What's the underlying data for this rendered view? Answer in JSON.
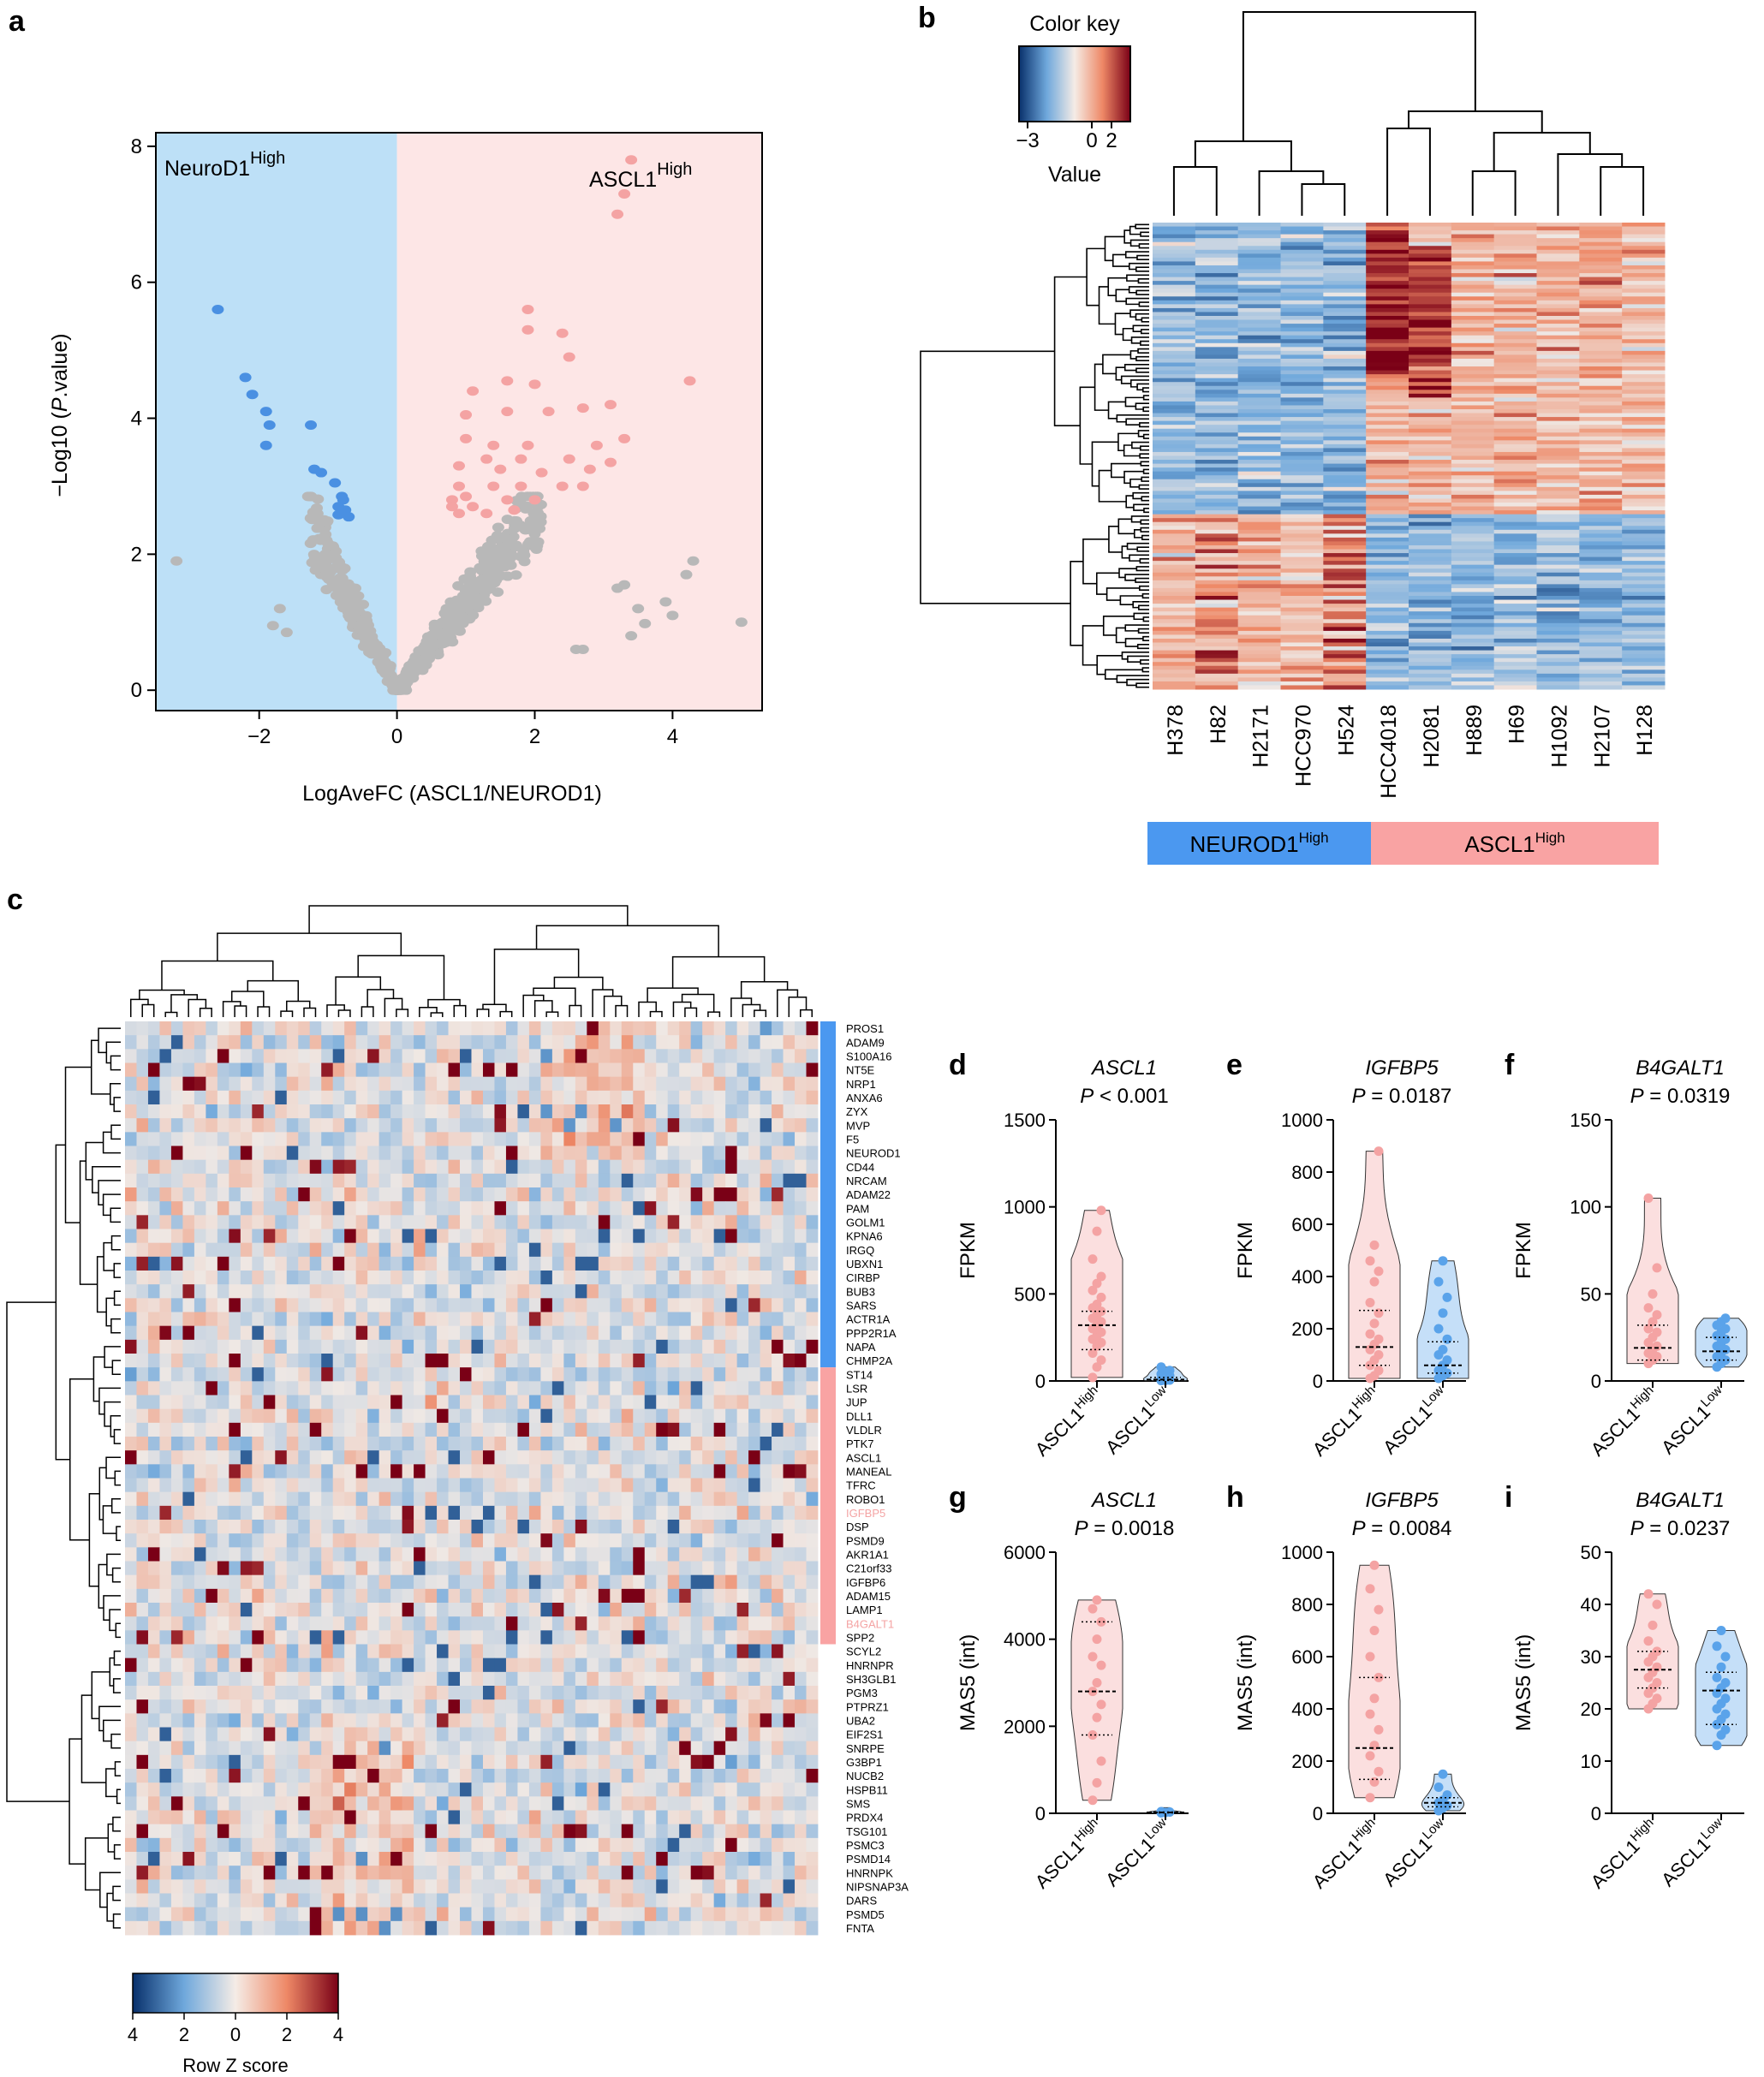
{
  "panels": {
    "a": {
      "letter": "a",
      "chart_data": {
        "type": "scatter",
        "title": "",
        "xlabel": "LogAveFC (ASCL1/NEUROD1)",
        "ylabel_prefix": "−Log10 (",
        "ylabel_italic": "P",
        "ylabel_suffix": ".value)",
        "xlim": [
          -3.5,
          5.3
        ],
        "ylim": [
          -0.3,
          8.2
        ],
        "xticks": [
          -2,
          0,
          2,
          4
        ],
        "xtick_labels": [
          "−2",
          "0",
          "2",
          "4"
        ],
        "yticks": [
          0,
          2,
          4,
          6,
          8
        ],
        "left_region_label": "NeuroD1",
        "left_region_sup": "High",
        "right_region_label": "ASCL1",
        "right_region_sup": "High",
        "region_colors": {
          "left": "#bde0f7",
          "right": "#fde6e6"
        },
        "point_colors": {
          "neurod1_sig": "#4a90e2",
          "ascl1_sig": "#f4a3a3",
          "ns": "#b8b8b8"
        },
        "series": [
          {
            "name": "NeuroD1-high significant",
            "points": [
              [
                -2.6,
                5.6
              ],
              [
                -2.2,
                4.6
              ],
              [
                -2.1,
                4.35
              ],
              [
                -1.9,
                4.1
              ],
              [
                -1.85,
                3.9
              ],
              [
                -1.25,
                3.9
              ],
              [
                -1.9,
                3.6
              ],
              [
                -1.2,
                3.25
              ],
              [
                -1.1,
                3.2
              ],
              [
                -0.9,
                3.05
              ],
              [
                -0.8,
                2.85
              ],
              [
                -0.85,
                2.7
              ],
              [
                -0.75,
                2.65
              ],
              [
                -0.8,
                2.6
              ],
              [
                -0.7,
                2.55
              ],
              [
                -0.85,
                2.58
              ],
              [
                -0.78,
                2.8
              ]
            ]
          },
          {
            "name": "ASCL1-high significant",
            "points": [
              [
                3.4,
                7.8
              ],
              [
                3.3,
                7.3
              ],
              [
                3.2,
                7.0
              ],
              [
                1.9,
                5.6
              ],
              [
                1.9,
                5.3
              ],
              [
                2.4,
                5.25
              ],
              [
                2.5,
                4.9
              ],
              [
                4.25,
                4.55
              ],
              [
                2.0,
                4.5
              ],
              [
                1.6,
                4.55
              ],
              [
                1.1,
                4.4
              ],
              [
                3.1,
                4.2
              ],
              [
                2.7,
                4.15
              ],
              [
                2.2,
                4.1
              ],
              [
                1.6,
                4.1
              ],
              [
                1.0,
                4.05
              ],
              [
                3.3,
                3.7
              ],
              [
                2.9,
                3.6
              ],
              [
                3.1,
                3.35
              ],
              [
                1.0,
                3.7
              ],
              [
                1.4,
                3.6
              ],
              [
                1.9,
                3.6
              ],
              [
                1.3,
                3.4
              ],
              [
                1.8,
                3.4
              ],
              [
                2.5,
                3.4
              ],
              [
                0.9,
                3.3
              ],
              [
                1.5,
                3.25
              ],
              [
                2.1,
                3.2
              ],
              [
                2.8,
                3.25
              ],
              [
                0.9,
                3.0
              ],
              [
                1.4,
                3.0
              ],
              [
                1.8,
                3.0
              ],
              [
                2.4,
                3.0
              ],
              [
                2.7,
                3.0
              ],
              [
                0.8,
                2.8
              ],
              [
                1.1,
                2.7
              ],
              [
                1.6,
                2.8
              ],
              [
                2.0,
                2.8
              ],
              [
                0.9,
                2.6
              ],
              [
                1.3,
                2.6
              ],
              [
                0.8,
                2.7
              ],
              [
                1.0,
                2.85
              ],
              [
                1.7,
                2.65
              ]
            ]
          },
          {
            "name": "Not significant",
            "points": [
              [
                -3.2,
                1.9
              ],
              [
                4.3,
                1.9
              ],
              [
                4.2,
                1.7
              ],
              [
                3.3,
                1.55
              ],
              [
                3.2,
                1.5
              ],
              [
                3.5,
                1.2
              ],
              [
                3.9,
                1.3
              ],
              [
                4.0,
                1.1
              ],
              [
                5.0,
                1.0
              ],
              [
                3.6,
                0.98
              ],
              [
                3.4,
                0.8
              ],
              [
                2.6,
                0.6
              ],
              [
                2.7,
                0.6
              ],
              [
                -1.6,
                0.85
              ],
              [
                -1.7,
                1.2
              ],
              [
                -1.8,
                0.95
              ]
            ]
          }
        ]
      }
    },
    "b": {
      "letter": "b",
      "color_key_title": "Color key",
      "color_key_label": "Value",
      "color_key_ticks": [
        "−3",
        "0",
        "2"
      ],
      "chart_data": {
        "type": "heatmap",
        "samples": [
          "H378",
          "H82",
          "H2171",
          "HCC970",
          "H524",
          "HCC4018",
          "H2081",
          "H889",
          "H69",
          "H1092",
          "H2107",
          "H128"
        ],
        "groups": [
          {
            "label": "NEUROD1",
            "sup": "High",
            "color": "#4b98f0"
          },
          {
            "label": "ASCL1",
            "sup": "High",
            "color": "#f9a3a3"
          }
        ],
        "value_range": [
          -3,
          3
        ],
        "rows": 120,
        "row_split": 75
      }
    },
    "c": {
      "letter": "c",
      "colorbar_title": "Row Z score",
      "colorbar_ticks": [
        "4",
        "2",
        "0",
        "2",
        "4"
      ],
      "chart_data": {
        "type": "heatmap",
        "genes": [
          "PROS1",
          "ADAM9",
          "S100A16",
          "NT5E",
          "NRP1",
          "ANXA6",
          "ZYX",
          "MVP",
          "F5",
          "NEUROD1",
          "CD44",
          "NRCAM",
          "ADAM22",
          "PAM",
          "GOLM1",
          "KPNA6",
          "IRGQ",
          "UBXN1",
          "CIRBP",
          "BUB3",
          "SARS",
          "ACTR1A",
          "PPP2R1A",
          "NAPA",
          "CHMP2A",
          "ST14",
          "LSR",
          "JUP",
          "DLL1",
          "VLDLR",
          "PTK7",
          "ASCL1",
          "MANEAL",
          "TFRC",
          "ROBO1",
          "IGFBP5",
          "DSP",
          "PSMD9",
          "AKR1A1",
          "C21orf33",
          "IGFBP6",
          "ADAM15",
          "LAMP1",
          "B4GALT1",
          "SPP2",
          "SCYL2",
          "HNRNPR",
          "SH3GLB1",
          "PGM3",
          "PTPRZ1",
          "UBA2",
          "EIF2S1",
          "SNRPE",
          "G3BP1",
          "NUCB2",
          "HSPB11",
          "SMS",
          "PRDX4",
          "TSG101",
          "PSMC3",
          "PSMD14",
          "HNRNPK",
          "NIPSNAP3A",
          "DARS",
          "PSMD5",
          "FNTA"
        ],
        "highlight_genes": [
          "IGFBP5",
          "B4GALT1"
        ],
        "group_bar": [
          {
            "from": 0,
            "to": 25,
            "color": "#4b98f0"
          },
          {
            "from": 25,
            "to": 45,
            "color": "#f9a3a3"
          }
        ],
        "columns": 60,
        "value_range": [
          -4,
          4
        ]
      }
    },
    "violins": [
      {
        "letter": "d",
        "gene": "ASCL1",
        "p_prefix": "P",
        "p_text": " < 0.001",
        "ylabel": "FPKM",
        "chart_data": {
          "type": "violin",
          "yticks": [
            0,
            500,
            1000,
            1500
          ],
          "ylim": [
            0,
            1500
          ],
          "groups": [
            {
              "label": "ASCL1",
              "sup": "High",
              "color": "#f4a3a3",
              "points": [
                980,
                860,
                700,
                600,
                560,
                520,
                480,
                440,
                420,
                400,
                380,
                360,
                340,
                320,
                300,
                280,
                260,
                240,
                220,
                200,
                160,
                120,
                80,
                20
              ],
              "median": 320,
              "q1": 180,
              "q3": 400
            },
            {
              "label": "ASCL1",
              "sup": "Low",
              "color": "#5aa3ea",
              "points": [
                80,
                60,
                50,
                40,
                30,
                20,
                10,
                5,
                3,
                2
              ],
              "median": 8,
              "q1": 3,
              "q3": 20
            }
          ]
        }
      },
      {
        "letter": "e",
        "gene": "IGFBP5",
        "p_prefix": "P",
        "p_text": " = 0.0187",
        "ylabel": "FPKM",
        "chart_data": {
          "type": "violin",
          "yticks": [
            0,
            200,
            400,
            600,
            800,
            1000
          ],
          "ylim": [
            0,
            1000
          ],
          "groups": [
            {
              "label": "ASCL1",
              "sup": "High",
              "color": "#f4a3a3",
              "points": [
                880,
                520,
                460,
                420,
                380,
                300,
                260,
                220,
                180,
                160,
                140,
                120,
                100,
                80,
                60,
                40,
                20,
                10
              ],
              "median": 130,
              "q1": 60,
              "q3": 270
            },
            {
              "label": "ASCL1",
              "sup": "Low",
              "color": "#5aa3ea",
              "points": [
                460,
                380,
                320,
                260,
                200,
                160,
                120,
                100,
                80,
                60,
                40,
                30,
                20,
                10
              ],
              "median": 60,
              "q1": 30,
              "q3": 150
            }
          ]
        }
      },
      {
        "letter": "f",
        "gene": "B4GALT1",
        "p_prefix": "P",
        "p_text": " = 0.0319",
        "ylabel": "FPKM",
        "chart_data": {
          "type": "violin",
          "yticks": [
            0,
            50,
            100,
            150
          ],
          "ylim": [
            0,
            150
          ],
          "groups": [
            {
              "label": "ASCL1",
              "sup": "High",
              "color": "#f4a3a3",
              "points": [
                105,
                65,
                50,
                42,
                38,
                34,
                30,
                28,
                25,
                22,
                20,
                18,
                16,
                14,
                12,
                10
              ],
              "median": 19,
              "q1": 12,
              "q3": 32
            },
            {
              "label": "ASCL1",
              "sup": "Low",
              "color": "#5aa3ea",
              "points": [
                36,
                34,
                32,
                30,
                28,
                26,
                24,
                22,
                20,
                18,
                16,
                14,
                12,
                10,
                8
              ],
              "median": 17,
              "q1": 12,
              "q3": 25
            }
          ]
        }
      },
      {
        "letter": "g",
        "gene": "ASCL1",
        "p_prefix": "P",
        "p_text": " = 0.0018",
        "ylabel": "MAS5 (int)",
        "chart_data": {
          "type": "violin",
          "yticks": [
            0,
            2000,
            4000,
            6000
          ],
          "ylim": [
            0,
            6000
          ],
          "groups": [
            {
              "label": "ASCL1",
              "sup": "High",
              "color": "#f4a3a3",
              "points": [
                4900,
                4700,
                4400,
                4000,
                3600,
                3400,
                3000,
                2800,
                2500,
                2200,
                1800,
                1200,
                700,
                300
              ],
              "median": 2800,
              "q1": 1800,
              "q3": 4400
            },
            {
              "label": "ASCL1",
              "sup": "Low",
              "color": "#5aa3ea",
              "points": [
                40,
                30,
                20,
                10
              ],
              "median": 20,
              "q1": 10,
              "q3": 30
            }
          ]
        }
      },
      {
        "letter": "h",
        "gene": "IGFBP5",
        "p_prefix": "P",
        "p_text": " = 0.0084",
        "ylabel": "MAS5 (int)",
        "chart_data": {
          "type": "violin",
          "yticks": [
            0,
            200,
            400,
            600,
            800,
            1000
          ],
          "ylim": [
            0,
            1000
          ],
          "groups": [
            {
              "label": "ASCL1",
              "sup": "High",
              "color": "#f4a3a3",
              "points": [
                950,
                860,
                780,
                700,
                600,
                520,
                440,
                380,
                320,
                260,
                220,
                160,
                120,
                60
              ],
              "median": 250,
              "q1": 130,
              "q3": 520
            },
            {
              "label": "ASCL1",
              "sup": "Low",
              "color": "#5aa3ea",
              "points": [
                150,
                100,
                70,
                50,
                40,
                30,
                20,
                10
              ],
              "median": 40,
              "q1": 25,
              "q3": 60
            }
          ]
        }
      },
      {
        "letter": "i",
        "gene": "B4GALT1",
        "p_prefix": "P",
        "p_text": " = 0.0237",
        "ylabel": "MAS5 (int)",
        "chart_data": {
          "type": "violin",
          "yticks": [
            0,
            10,
            20,
            30,
            40,
            50
          ],
          "ylim": [
            0,
            50
          ],
          "groups": [
            {
              "label": "ASCL1",
              "sup": "High",
              "color": "#f4a3a3",
              "points": [
                42,
                40,
                36,
                33,
                31,
                30,
                29,
                28,
                27,
                26,
                25,
                24,
                23,
                22,
                21,
                20
              ],
              "median": 27.5,
              "q1": 24,
              "q3": 31
            },
            {
              "label": "ASCL1",
              "sup": "Low",
              "color": "#5aa3ea",
              "points": [
                35,
                32,
                30,
                28,
                26,
                25,
                24,
                23,
                22,
                21,
                20,
                19,
                18,
                17,
                16,
                15,
                13
              ],
              "median": 23.5,
              "q1": 17,
              "q3": 27
            }
          ]
        }
      }
    ]
  }
}
